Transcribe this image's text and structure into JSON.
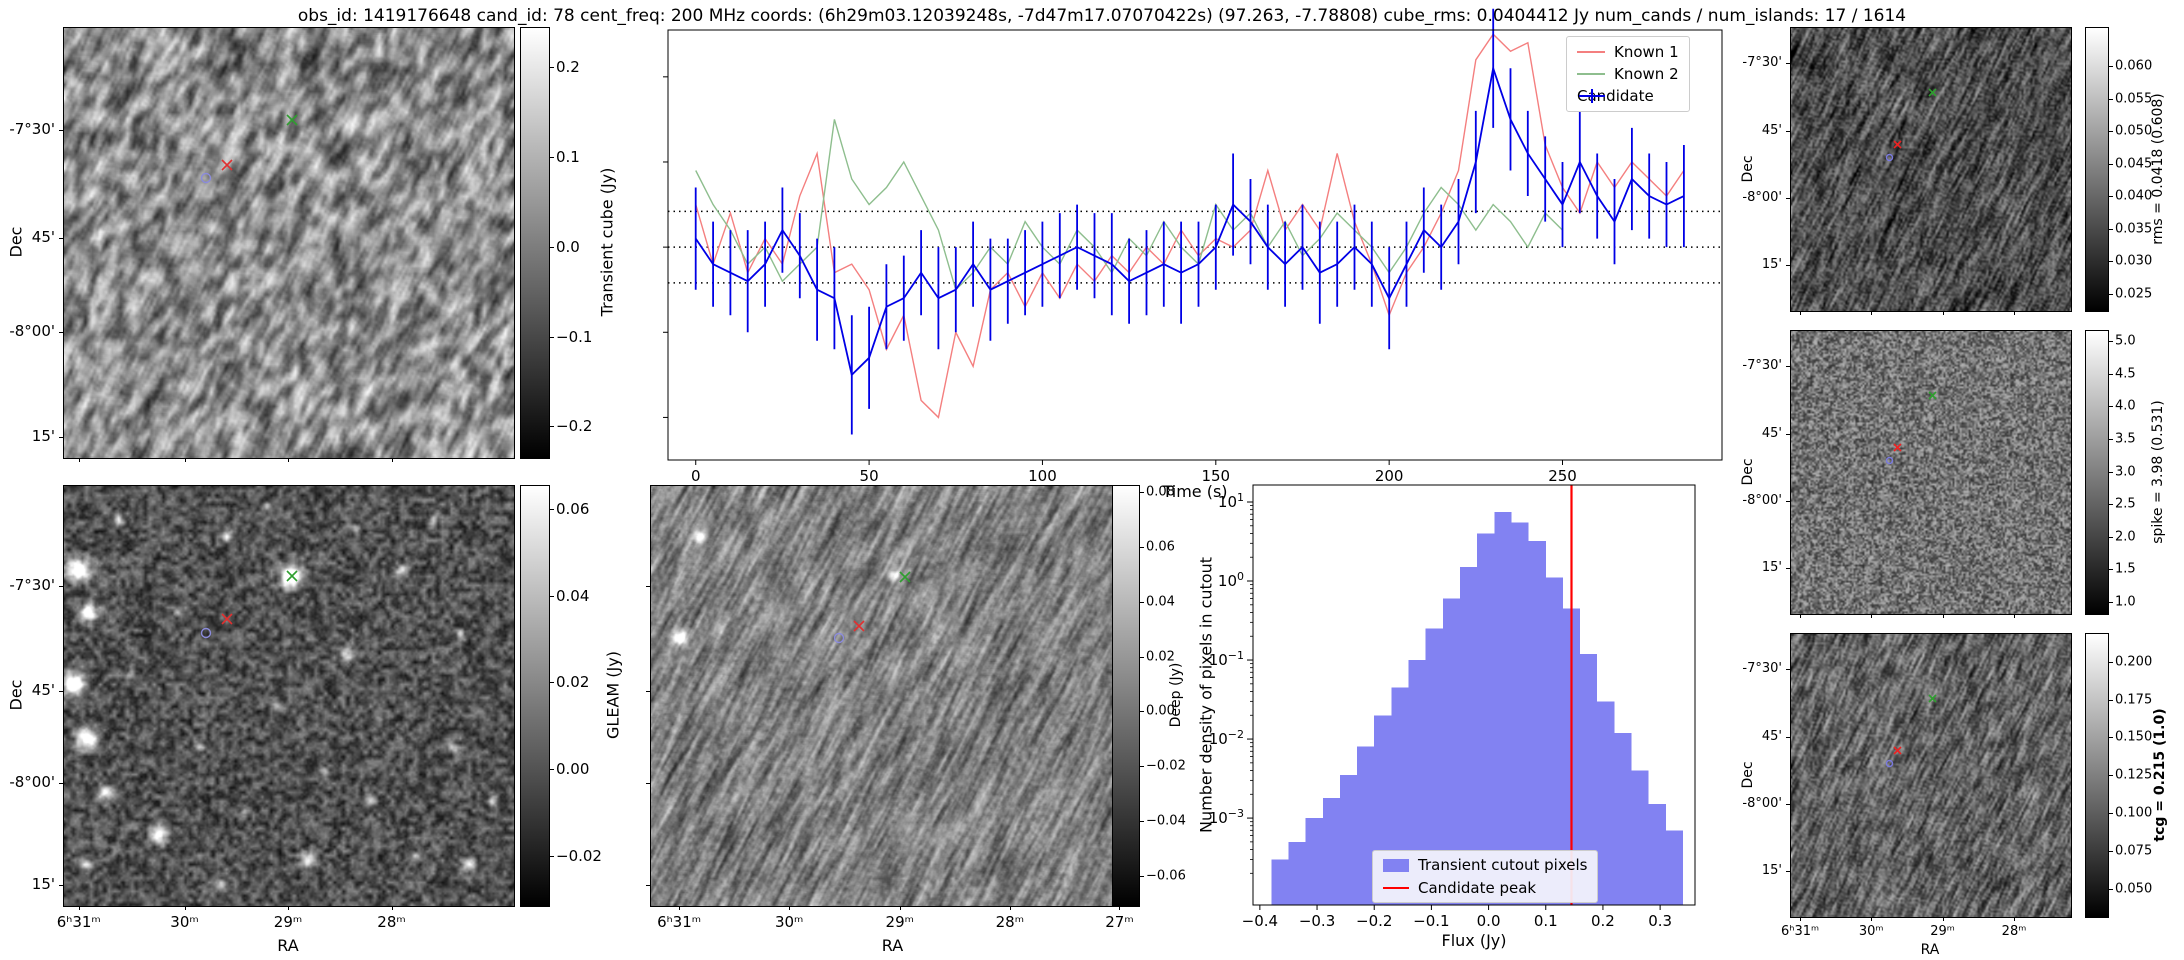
{
  "title": "obs_id: 1419176648 cand_id: 78 cent_freq: 200 MHz coords: (6h29m03.12039248s, -7d47m17.07070422s) (97.263, -7.78808) cube_rms: 0.0404412 Jy num_cands / num_islands: 17 / 1614",
  "colors": {
    "known1": "#f47f7f",
    "known2": "#8ebe8e",
    "candidate": "#0000e6",
    "threshold": "#000000",
    "hist_fill": "#8282f2",
    "hist_peak_line": "#ff0000",
    "marker_green": "#2f9e2f",
    "marker_red": "#e03030",
    "marker_circle": "#8b8bdc"
  },
  "chart_data": [
    {
      "id": "lightcurve",
      "type": "line",
      "xlabel": "Time (s)",
      "x_ticks": [
        0,
        50,
        100,
        150,
        200,
        250
      ],
      "x_range": [
        -8,
        296
      ],
      "y_range": [
        -0.25,
        0.255
      ],
      "y_ticks_unlabeled": [
        0.2,
        0.1,
        0.0,
        -0.1,
        -0.2
      ],
      "threshold_lines": [
        0.042,
        0.0,
        -0.042
      ],
      "legend_position": "upper right",
      "series": [
        {
          "name": "Known 1",
          "style": "line",
          "t_start": 0,
          "t_step": 5,
          "flux": [
            0.05,
            -0.02,
            0.04,
            -0.03,
            0.01,
            -0.02,
            0.06,
            0.11,
            -0.03,
            -0.02,
            -0.05,
            -0.12,
            -0.08,
            -0.18,
            -0.2,
            -0.1,
            -0.14,
            -0.05,
            -0.03,
            -0.07,
            -0.03,
            -0.06,
            -0.02,
            -0.04,
            -0.01,
            -0.03,
            0.0,
            -0.02,
            0.02,
            -0.01,
            0.01,
            0.0,
            0.02,
            0.09,
            0.02,
            0.05,
            0.02,
            0.11,
            0.03,
            -0.02,
            -0.08,
            -0.03,
            0.0,
            0.04,
            0.09,
            0.22,
            0.25,
            0.23,
            0.24,
            0.12,
            0.07,
            0.04,
            0.1,
            0.07,
            0.1,
            0.08,
            0.06,
            0.09
          ]
        },
        {
          "name": "Known 2",
          "style": "line",
          "t_start": 0,
          "t_step": 5,
          "flux": [
            0.09,
            0.05,
            0.02,
            -0.02,
            0.0,
            -0.04,
            -0.02,
            0.0,
            0.15,
            0.08,
            0.05,
            0.07,
            0.1,
            0.06,
            0.02,
            -0.05,
            -0.03,
            0.0,
            -0.02,
            0.03,
            0.0,
            -0.02,
            0.02,
            0.0,
            -0.03,
            0.01,
            -0.01,
            0.03,
            0.0,
            -0.02,
            0.05,
            0.02,
            0.04,
            0.0,
            0.03,
            -0.01,
            0.01,
            0.04,
            0.02,
            0.0,
            -0.03,
            0.0,
            0.04,
            0.07,
            0.05,
            0.02,
            0.05,
            0.03,
            0.0,
            0.04,
            0.02
          ]
        },
        {
          "name": "Candidate",
          "style": "errorbar",
          "t_start": 0,
          "t_step": 5,
          "flux": [
            0.01,
            -0.02,
            -0.03,
            -0.04,
            -0.02,
            0.02,
            -0.01,
            -0.05,
            -0.06,
            -0.15,
            -0.13,
            -0.07,
            -0.06,
            -0.03,
            -0.06,
            -0.05,
            -0.02,
            -0.05,
            -0.04,
            -0.03,
            -0.02,
            -0.01,
            0.0,
            -0.01,
            -0.02,
            -0.04,
            -0.03,
            -0.02,
            -0.03,
            -0.02,
            0.0,
            0.05,
            0.03,
            0.0,
            -0.02,
            0.0,
            -0.03,
            -0.02,
            0.0,
            -0.02,
            -0.06,
            -0.02,
            0.02,
            0.0,
            0.03,
            0.1,
            0.21,
            0.15,
            0.11,
            0.08,
            0.05,
            0.1,
            0.06,
            0.03,
            0.08,
            0.06,
            0.05,
            0.06
          ],
          "err": [
            0.06,
            0.05,
            0.05,
            0.06,
            0.05,
            0.05,
            0.05,
            0.06,
            0.06,
            0.07,
            0.06,
            0.05,
            0.05,
            0.05,
            0.06,
            0.05,
            0.05,
            0.06,
            0.05,
            0.05,
            0.05,
            0.05,
            0.05,
            0.05,
            0.06,
            0.05,
            0.05,
            0.05,
            0.06,
            0.05,
            0.05,
            0.06,
            0.05,
            0.05,
            0.05,
            0.05,
            0.06,
            0.05,
            0.05,
            0.05,
            0.06,
            0.05,
            0.05,
            0.05,
            0.05,
            0.06,
            0.07,
            0.06,
            0.05,
            0.05,
            0.05,
            0.06,
            0.05,
            0.05,
            0.06,
            0.05,
            0.05,
            0.06
          ]
        }
      ]
    },
    {
      "id": "flux_histogram",
      "type": "bar",
      "xlabel": "Flux (Jy)",
      "ylabel": "Number density of pixels in cutout",
      "x_ticks": [
        -0.4,
        -0.3,
        -0.2,
        -0.1,
        0.0,
        0.1,
        0.2,
        0.3
      ],
      "y_tick_exponents": [
        1,
        0,
        -1,
        -2,
        -3
      ],
      "x_range": [
        -0.412,
        0.361
      ],
      "log_y_range": [
        -4.1,
        1.215
      ],
      "bin_start": -0.38,
      "bin_width": 0.03,
      "densities": [
        0.0003,
        0.0005,
        0.001,
        0.0018,
        0.0035,
        0.008,
        0.02,
        0.045,
        0.1,
        0.25,
        0.6,
        1.5,
        4.0,
        7.5,
        5.5,
        3.2,
        1.1,
        0.45,
        0.12,
        0.03,
        0.012,
        0.004,
        0.0015,
        0.0007
      ],
      "candidate_peak": 0.145,
      "legend": [
        "Transient cutout pixels",
        "Candidate peak"
      ]
    }
  ],
  "image_panels": [
    {
      "id": "transient",
      "ylabel": "Dec",
      "yticks": [
        {
          "label": "-7°30'",
          "f": 0.24
        },
        {
          "label": "45'",
          "f": 0.49
        },
        {
          "label": "-8°00'",
          "f": 0.71
        },
        {
          "label": "15'",
          "f": 0.953
        }
      ],
      "xticks": [
        {
          "label": "",
          "f": 0.035
        },
        {
          "label": "",
          "f": 0.27
        },
        {
          "label": "",
          "f": 0.5
        },
        {
          "label": "",
          "f": 0.73
        }
      ],
      "colorbar": {
        "label": "Transient cube (Jy)",
        "vmin": -0.234,
        "vmax": 0.245,
        "ticks": [
          0.2,
          0.1,
          0.0,
          -0.1,
          -0.2
        ],
        "fmt": 1
      },
      "markers": [
        {
          "type": "x",
          "color": "#2f9e2f",
          "fx": 0.508,
          "fy": 0.216
        },
        {
          "type": "x",
          "color": "#e03030",
          "fx": 0.365,
          "fy": 0.32
        },
        {
          "type": "circle",
          "color": "#8b8bdc",
          "fx": 0.318,
          "fy": 0.352
        }
      ]
    },
    {
      "id": "gleam",
      "ylabel": "Dec",
      "xlabel": "RA",
      "yticks": [
        {
          "label": "-7°30'",
          "f": 0.24
        },
        {
          "label": "45'",
          "f": 0.49
        },
        {
          "label": "-8°00'",
          "f": 0.71
        },
        {
          "label": "15'",
          "f": 0.953
        }
      ],
      "xticks": [
        {
          "label": "6ʰ31ᵐ",
          "f": 0.035
        },
        {
          "label": "30ᵐ",
          "f": 0.27
        },
        {
          "label": "29ᵐ",
          "f": 0.5
        },
        {
          "label": "28ᵐ",
          "f": 0.73
        }
      ],
      "colorbar": {
        "label": "GLEAM (Jy)",
        "vmin": -0.0313,
        "vmax": 0.0655,
        "ticks": [
          0.06,
          0.04,
          0.02,
          0.0,
          -0.02
        ],
        "fmt": 2
      },
      "markers": [
        {
          "type": "x",
          "color": "#2f9e2f",
          "fx": 0.508,
          "fy": 0.216
        },
        {
          "type": "x",
          "color": "#e03030",
          "fx": 0.365,
          "fy": 0.32
        },
        {
          "type": "circle",
          "color": "#8b8bdc",
          "fx": 0.318,
          "fy": 0.352
        }
      ]
    },
    {
      "id": "deep",
      "xlabel": "RA",
      "yticks": [
        {
          "label": "",
          "f": 0.24
        },
        {
          "label": "",
          "f": 0.49
        },
        {
          "label": "",
          "f": 0.71
        },
        {
          "label": "",
          "f": 0.953
        }
      ],
      "xticks": [
        {
          "label": "6ʰ31ᵐ",
          "f": 0.06
        },
        {
          "label": "30ᵐ",
          "f": 0.287
        },
        {
          "label": "29ᵐ",
          "f": 0.515
        },
        {
          "label": "28ᵐ",
          "f": 0.742
        },
        {
          "label": "27ᵐ",
          "f": 0.968
        }
      ],
      "colorbar": {
        "label": "Deep (Jy)",
        "vmin": -0.0707,
        "vmax": 0.0826,
        "ticks": [
          0.08,
          0.06,
          0.04,
          0.02,
          0.0,
          -0.02,
          -0.04,
          -0.06
        ],
        "fmt": 2
      },
      "markers": [
        {
          "type": "x",
          "color": "#2f9e2f",
          "fx": 0.525,
          "fy": 0.22
        },
        {
          "type": "x",
          "color": "#e03030",
          "fx": 0.43,
          "fy": 0.335
        },
        {
          "type": "circle",
          "color": "#8b8bdc",
          "fx": 0.39,
          "fy": 0.365
        }
      ]
    },
    {
      "id": "rms",
      "ylabel": "Dec",
      "yticks": [
        {
          "label": "-7°30'",
          "f": 0.127
        },
        {
          "label": "45'",
          "f": 0.367
        },
        {
          "label": "-8°00'",
          "f": 0.604
        },
        {
          "label": "15'",
          "f": 0.841
        }
      ],
      "xticks": [
        {
          "label": "",
          "f": 0.036
        },
        {
          "label": "",
          "f": 0.29
        },
        {
          "label": "",
          "f": 0.545
        },
        {
          "label": "",
          "f": 0.8
        }
      ],
      "colorbar": {
        "label": "rms = 0.0418 (0.608)",
        "vmin": 0.0225,
        "vmax": 0.066,
        "ticks": [
          0.06,
          0.055,
          0.05,
          0.045,
          0.04,
          0.035,
          0.03,
          0.025
        ],
        "fmt": 3
      },
      "markers": [
        {
          "type": "x",
          "color": "#2f9e2f",
          "fx": 0.51,
          "fy": 0.23
        },
        {
          "type": "x",
          "color": "#ee2222",
          "fx": 0.385,
          "fy": 0.415
        },
        {
          "type": "circle",
          "color": "#7a7ae0",
          "fx": 0.355,
          "fy": 0.46
        }
      ]
    },
    {
      "id": "spike",
      "ylabel": "Dec",
      "yticks": [
        {
          "label": "-7°30'",
          "f": 0.127
        },
        {
          "label": "45'",
          "f": 0.367
        },
        {
          "label": "-8°00'",
          "f": 0.604
        },
        {
          "label": "15'",
          "f": 0.841
        }
      ],
      "xticks": [
        {
          "label": "",
          "f": 0.036
        },
        {
          "label": "",
          "f": 0.29
        },
        {
          "label": "",
          "f": 0.545
        },
        {
          "label": "",
          "f": 0.8
        }
      ],
      "colorbar": {
        "label": "spike = 3.98 (0.531)",
        "vmin": 0.83,
        "vmax": 5.17,
        "ticks": [
          5.0,
          4.5,
          4.0,
          3.5,
          3.0,
          2.5,
          2.0,
          1.5,
          1.0
        ],
        "fmt": 1
      },
      "markers": [
        {
          "type": "x",
          "color": "#2f9e2f",
          "fx": 0.51,
          "fy": 0.23
        },
        {
          "type": "x",
          "color": "#ee2222",
          "fx": 0.385,
          "fy": 0.415
        },
        {
          "type": "circle",
          "color": "#7a7ae0",
          "fx": 0.355,
          "fy": 0.46
        }
      ]
    },
    {
      "id": "tcg",
      "ylabel": "Dec",
      "xlabel": "RA",
      "yticks": [
        {
          "label": "-7°30'",
          "f": 0.127
        },
        {
          "label": "45'",
          "f": 0.367
        },
        {
          "label": "-8°00'",
          "f": 0.604
        },
        {
          "label": "15'",
          "f": 0.841
        }
      ],
      "xticks": [
        {
          "label": "6ʰ31ᵐ",
          "f": 0.036
        },
        {
          "label": "30ᵐ",
          "f": 0.29
        },
        {
          "label": "29ᵐ",
          "f": 0.545
        },
        {
          "label": "28ᵐ",
          "f": 0.8
        }
      ],
      "colorbar": {
        "label": "tcg = 0.215 (1.0)",
        "bold": true,
        "vmin": 0.032,
        "vmax": 0.219,
        "ticks": [
          0.2,
          0.175,
          0.15,
          0.125,
          0.1,
          0.075,
          0.05
        ],
        "fmt": 3
      },
      "markers": [
        {
          "type": "x",
          "color": "#2f9e2f",
          "fx": 0.51,
          "fy": 0.23
        },
        {
          "type": "x",
          "color": "#ee2222",
          "fx": 0.385,
          "fy": 0.415
        },
        {
          "type": "circle",
          "color": "#7a7ae0",
          "fx": 0.355,
          "fy": 0.46
        }
      ]
    }
  ]
}
